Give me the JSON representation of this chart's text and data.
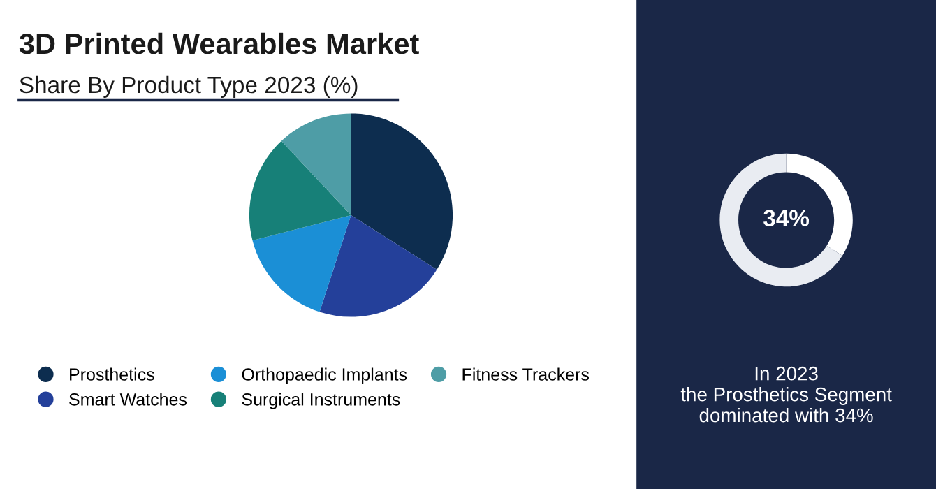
{
  "chart_data": [
    {
      "type": "pie",
      "title": "3D Printed Wearables Market",
      "subtitle": "Share By Product Type 2023 (%)",
      "categories": [
        "Prosthetics",
        "Smart Watches",
        "Orthopaedic Implants",
        "Surgical Instruments",
        "Fitness Trackers"
      ],
      "values": [
        34,
        21,
        16,
        17,
        12
      ],
      "colors": [
        "#0d2d4f",
        "#24409a",
        "#1b8fd6",
        "#178078",
        "#4e9da6"
      ],
      "legend": "bottom"
    },
    {
      "type": "donut",
      "categories": [
        null,
        null
      ],
      "values": [
        34,
        66
      ],
      "colors": [
        "#ffffff",
        "#e9ecf2"
      ],
      "value_labels": [
        "34%",
        null
      ],
      "annotations": [
        "In 2023\nthe Prosthetics Segment\ndominated with 34%"
      ]
    }
  ]
}
